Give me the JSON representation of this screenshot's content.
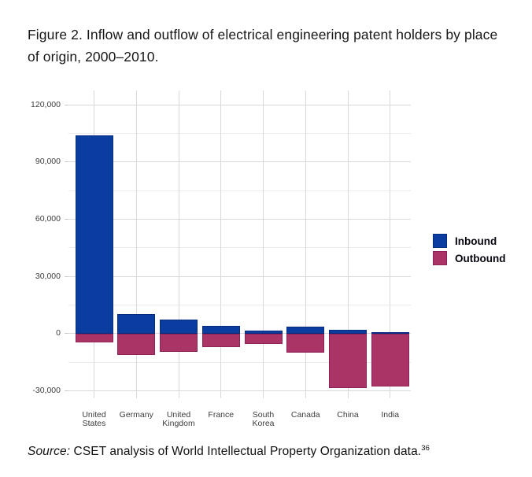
{
  "title": {
    "line1": "Figure 2. Inflow and outflow of electrical engineering patent holders by place",
    "line2": "of origin, 2000–2010."
  },
  "source": {
    "prefix": "Source:",
    "text": " CSET analysis of World Intellectual Property Organization data.",
    "footnote": "36"
  },
  "legend": {
    "items": [
      {
        "label": "Inbound",
        "color": "#0a3d9f",
        "border": "#062c80"
      },
      {
        "label": "Outbound",
        "color": "#ab3467",
        "border": "#8c2257"
      }
    ]
  },
  "chart_data": {
    "type": "bar",
    "title": "Inflow and outflow of electrical engineering patent holders by place of origin, 2000–2010",
    "categories": [
      "United States",
      "Germany",
      "United Kingdom",
      "France",
      "South Korea",
      "Canada",
      "China",
      "India"
    ],
    "series": [
      {
        "name": "Inbound",
        "color": "#0a3d9f",
        "border": "#062c80",
        "values": [
          104000,
          10000,
          7300,
          4200,
          1600,
          3500,
          2100,
          500
        ]
      },
      {
        "name": "Outbound",
        "color": "#ab3467",
        "border": "#8c2257",
        "values": [
          -4700,
          -11200,
          -9600,
          -7100,
          -5700,
          -10200,
          -28500,
          -28000
        ]
      }
    ],
    "xlabel": "",
    "ylabel": "",
    "ylim": [
      -34000,
      127500
    ],
    "yticks": [
      -30000,
      0,
      30000,
      60000,
      90000,
      120000
    ],
    "ytick_labels": [
      "-30,000",
      "0",
      "30,000",
      "60,000",
      "90,000",
      "120,000"
    ],
    "minor_yticks": [
      -15000,
      15000,
      45000,
      75000,
      105000
    ],
    "grid": {
      "major_color": "#d9d9d9",
      "minor_color": "#ececec",
      "tick_color": "#c9c9c9"
    },
    "legend_position": "right"
  }
}
